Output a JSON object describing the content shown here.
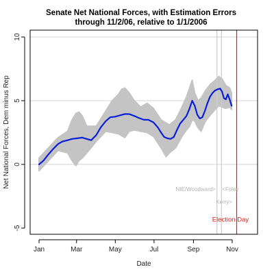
{
  "chart_data": {
    "type": "scatter",
    "title_line1": "Senate Net National Forces, with Estimation Errors",
    "title_line2": "through 11/2/06, relative to 1/1/2006",
    "xlabel": "Date",
    "ylabel": "Net National Forces, Dem minus Rep",
    "xlim_days": [
      0,
      330
    ],
    "ylim": [
      -5.5,
      10.5
    ],
    "x_ticks": [
      {
        "label": "Jan",
        "day": 0
      },
      {
        "label": "Mar",
        "day": 59
      },
      {
        "label": "May",
        "day": 120
      },
      {
        "label": "Jul",
        "day": 181
      },
      {
        "label": "Sep",
        "day": 243
      },
      {
        "label": "Nov",
        "day": 304
      }
    ],
    "y_ticks": [
      {
        "label": "-5",
        "value": -5
      },
      {
        "label": "0",
        "value": 0
      },
      {
        "label": "5",
        "value": 5
      },
      {
        "label": "10",
        "value": 10
      }
    ],
    "hgrid": [
      0,
      5,
      10
    ],
    "series": [
      {
        "color": "#0a1fd8",
        "points": [
          [
            0,
            0.0
          ],
          [
            7,
            0.3
          ],
          [
            15,
            0.8
          ],
          [
            22,
            1.2
          ],
          [
            30,
            1.6
          ],
          [
            37,
            1.8
          ],
          [
            45,
            1.9
          ],
          [
            52,
            2.0
          ],
          [
            60,
            2.05
          ],
          [
            68,
            2.1
          ],
          [
            75,
            2.0
          ],
          [
            82,
            1.9
          ],
          [
            90,
            2.3
          ],
          [
            97,
            2.9
          ],
          [
            105,
            3.4
          ],
          [
            112,
            3.7
          ],
          [
            120,
            3.75
          ],
          [
            127,
            3.85
          ],
          [
            135,
            3.95
          ],
          [
            142,
            3.95
          ],
          [
            150,
            3.8
          ],
          [
            157,
            3.65
          ],
          [
            165,
            3.5
          ],
          [
            172,
            3.5
          ],
          [
            180,
            3.3
          ],
          [
            187,
            2.9
          ],
          [
            192,
            2.5
          ],
          [
            197,
            2.15
          ],
          [
            202,
            2.05
          ],
          [
            207,
            2.0
          ],
          [
            212,
            2.15
          ],
          [
            217,
            2.7
          ],
          [
            222,
            3.2
          ],
          [
            227,
            3.5
          ],
          [
            232,
            3.8
          ],
          [
            237,
            4.4
          ],
          [
            241,
            5.0
          ],
          [
            245,
            4.6
          ],
          [
            249,
            3.9
          ],
          [
            253,
            3.6
          ],
          [
            257,
            3.7
          ],
          [
            261,
            4.2
          ],
          [
            265,
            4.8
          ],
          [
            269,
            5.3
          ],
          [
            273,
            5.6
          ],
          [
            277,
            5.8
          ],
          [
            281,
            5.9
          ],
          [
            285,
            5.95
          ],
          [
            288,
            5.7
          ],
          [
            291,
            5.2
          ],
          [
            294,
            5.1
          ],
          [
            297,
            5.5
          ],
          [
            300,
            5.1
          ],
          [
            303,
            4.6
          ]
        ]
      }
    ],
    "error_band": {
      "color": "#c4c4c4",
      "upper": [
        [
          0,
          0.5
        ],
        [
          15,
          1.3
        ],
        [
          30,
          2.1
        ],
        [
          45,
          2.6
        ],
        [
          52,
          3.5
        ],
        [
          58,
          4.0
        ],
        [
          63,
          4.1
        ],
        [
          68,
          3.8
        ],
        [
          75,
          3.0
        ],
        [
          90,
          3.0
        ],
        [
          105,
          4.2
        ],
        [
          115,
          5.0
        ],
        [
          125,
          5.5
        ],
        [
          130,
          5.9
        ],
        [
          135,
          6.0
        ],
        [
          142,
          5.6
        ],
        [
          150,
          5.0
        ],
        [
          160,
          4.5
        ],
        [
          170,
          4.8
        ],
        [
          180,
          4.4
        ],
        [
          192,
          3.5
        ],
        [
          205,
          3.1
        ],
        [
          215,
          3.5
        ],
        [
          225,
          4.5
        ],
        [
          232,
          5.3
        ],
        [
          237,
          6.0
        ],
        [
          241,
          6.6
        ],
        [
          245,
          5.6
        ],
        [
          250,
          5.0
        ],
        [
          255,
          5.2
        ],
        [
          262,
          5.8
        ],
        [
          270,
          6.3
        ],
        [
          277,
          6.6
        ],
        [
          283,
          6.9
        ],
        [
          288,
          6.7
        ],
        [
          294,
          6.2
        ],
        [
          300,
          6.0
        ],
        [
          303,
          5.6
        ]
      ],
      "lower": [
        [
          0,
          -0.5
        ],
        [
          15,
          0.3
        ],
        [
          30,
          1.1
        ],
        [
          45,
          0.9
        ],
        [
          52,
          0.3
        ],
        [
          58,
          -0.1
        ],
        [
          63,
          0.3
        ],
        [
          68,
          0.5
        ],
        [
          75,
          0.9
        ],
        [
          90,
          1.8
        ],
        [
          105,
          2.6
        ],
        [
          115,
          2.5
        ],
        [
          125,
          2.4
        ],
        [
          135,
          2.1
        ],
        [
          142,
          2.6
        ],
        [
          150,
          2.7
        ],
        [
          160,
          2.6
        ],
        [
          170,
          2.5
        ],
        [
          180,
          2.2
        ],
        [
          192,
          1.3
        ],
        [
          200,
          0.6
        ],
        [
          205,
          0.9
        ],
        [
          215,
          1.3
        ],
        [
          225,
          2.2
        ],
        [
          232,
          2.7
        ],
        [
          237,
          3.0
        ],
        [
          241,
          3.5
        ],
        [
          245,
          3.4
        ],
        [
          250,
          2.9
        ],
        [
          255,
          2.6
        ],
        [
          262,
          3.4
        ],
        [
          270,
          3.9
        ],
        [
          277,
          4.3
        ],
        [
          283,
          4.6
        ],
        [
          288,
          4.5
        ],
        [
          294,
          4.4
        ],
        [
          300,
          4.5
        ],
        [
          303,
          4.3
        ]
      ]
    },
    "vlines": [
      {
        "day": 280,
        "color": "#cccccc"
      },
      {
        "day": 287,
        "color": "#cccccc"
      },
      {
        "day": 311,
        "color": "#dd1e1e"
      }
    ],
    "annotations": [
      {
        "text": "NIE/Woodward>",
        "color": "#b4b4b4",
        "day": 278,
        "value": -2.1,
        "anchor": "end"
      },
      {
        "text": "<Foley",
        "color": "#b4b4b4",
        "day": 288,
        "value": -2.1,
        "anchor": "start"
      },
      {
        "text": "Kerry>",
        "color": "#b4b4b4",
        "day": 304,
        "value": -3.1,
        "anchor": "end"
      },
      {
        "text": "Election Day",
        "color": "#dd1e1e",
        "day": 330,
        "value": -4.5,
        "anchor": "end"
      }
    ]
  }
}
